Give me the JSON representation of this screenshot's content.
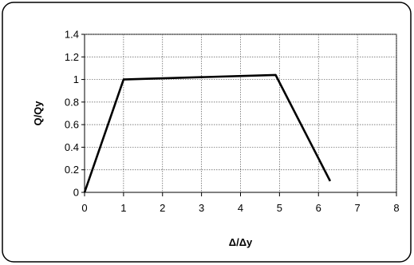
{
  "chart_data": {
    "type": "line",
    "title": "",
    "xlabel": "Δ/Δy",
    "ylabel": "Q/Qy",
    "xlim": [
      0,
      8
    ],
    "ylim": [
      0,
      1.4
    ],
    "x_ticks": [
      "0",
      "1",
      "2",
      "3",
      "4",
      "5",
      "6",
      "7",
      "8"
    ],
    "y_ticks": [
      "0",
      "0.2",
      "0.4",
      "0.6",
      "0.8",
      "1",
      "1.2",
      "1.4"
    ],
    "grid": true,
    "legend": "none",
    "series": [
      {
        "x": [
          0,
          1,
          4.9,
          6.3
        ],
        "y": [
          0,
          1.0,
          1.04,
          0.1
        ],
        "color": "#000000"
      }
    ]
  }
}
